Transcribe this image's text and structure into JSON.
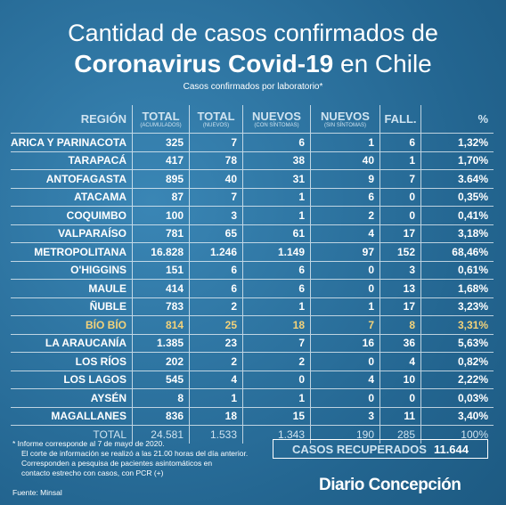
{
  "header": {
    "title_line1": "Cantidad de casos confirmados de",
    "title_bold": "Coronavirus Covid-19",
    "title_rest": "en Chile",
    "subtitle": "Casos confirmados por laboratorio*"
  },
  "table": {
    "columns": [
      {
        "label": "REGIÓN"
      },
      {
        "label": "TOTAL",
        "sub": "(ACUMULADOS)"
      },
      {
        "label": "TOTAL",
        "sub": "(NUEVOS)"
      },
      {
        "label": "NUEVOS",
        "sub": "(CON SÍNTOMAS)"
      },
      {
        "label": "NUEVOS",
        "sub": "(SIN SÍNTOMAS)"
      },
      {
        "label": "FALL."
      },
      {
        "label": "%"
      }
    ],
    "rows": [
      [
        "ARICA Y PARINACOTA",
        "325",
        "7",
        "6",
        "1",
        "6",
        "1,32%"
      ],
      [
        "TARAPACÁ",
        "417",
        "78",
        "38",
        "40",
        "1",
        "1,70%"
      ],
      [
        "ANTOFAGASTA",
        "895",
        "40",
        "31",
        "9",
        "7",
        "3.64%"
      ],
      [
        "ATACAMA",
        "87",
        "7",
        "1",
        "6",
        "0",
        "0,35%"
      ],
      [
        "COQUIMBO",
        "100",
        "3",
        "1",
        "2",
        "0",
        "0,41%"
      ],
      [
        "VALPARAÍSO",
        "781",
        "65",
        "61",
        "4",
        "17",
        "3,18%"
      ],
      [
        "METROPOLITANA",
        "16.828",
        "1.246",
        "1.149",
        "97",
        "152",
        "68,46%"
      ],
      [
        "O'HIGGINS",
        "151",
        "6",
        "6",
        "0",
        "3",
        "0,61%"
      ],
      [
        "MAULE",
        "414",
        "6",
        "6",
        "0",
        "13",
        "1,68%"
      ],
      [
        "ÑUBLE",
        "783",
        "2",
        "1",
        "1",
        "17",
        "3,23%"
      ],
      [
        "BÍO BÍO",
        "814",
        "25",
        "18",
        "7",
        "8",
        "3,31%"
      ],
      [
        "LA ARAUCANÍA",
        "1.385",
        "23",
        "7",
        "16",
        "36",
        "5,63%"
      ],
      [
        "LOS RÍOS",
        "202",
        "2",
        "2",
        "0",
        "4",
        "0,82%"
      ],
      [
        "LOS LAGOS",
        "545",
        "4",
        "0",
        "4",
        "10",
        "2,22%"
      ],
      [
        "AYSÉN",
        "8",
        "1",
        "1",
        "0",
        "0",
        "0,03%"
      ],
      [
        "MAGALLANES",
        "836",
        "18",
        "15",
        "3",
        "11",
        "3,40%"
      ]
    ],
    "total": [
      "TOTAL",
      "24.581",
      "1.533",
      "1.343",
      "190",
      "285",
      "100%"
    ]
  },
  "footnotes": [
    "* Informe corresponde al 7 de mayo de 2020.",
    "El corte de información se realizó a las 21.00 horas del día anterior.",
    "Corresponden a pesquisa de pacientes asintomáticos en",
    "contacto estrecho con casos, con PCR (+)"
  ],
  "source": "Fuente: Minsal",
  "recovered": {
    "label": "CASOS RECUPERADOS",
    "value": "11.644"
  },
  "brand": "Diario Concepción"
}
